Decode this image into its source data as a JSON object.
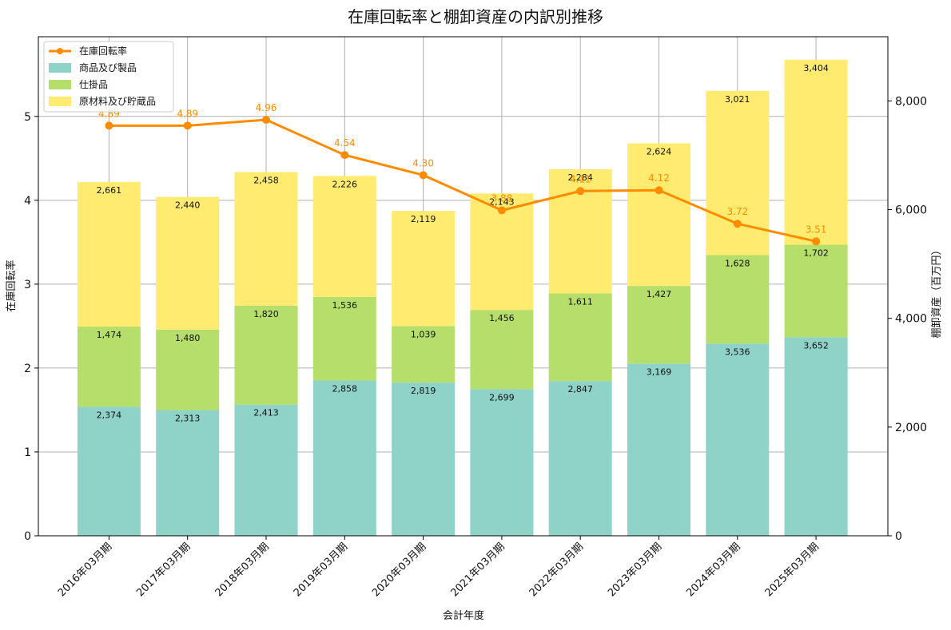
{
  "chart_data": {
    "type": "bar",
    "title": "在庫回転率と棚卸資産の内訳別推移",
    "xlabel": "会計年度",
    "ylabel_left": "在庫回転率",
    "ylabel_right": "棚卸資産（百万円）",
    "categories": [
      "2016年03月期",
      "2017年03月期",
      "2018年03月期",
      "2019年03月期",
      "2020年03月期",
      "2021年03月期",
      "2022年03月期",
      "2023年03月期",
      "2024年03月期",
      "2025年03月期"
    ],
    "stacked_bars": [
      {
        "name": "商品及び製品",
        "color": "#8fd3c8",
        "values": [
          2374,
          2313,
          2413,
          2858,
          2819,
          2699,
          2847,
          3169,
          3536,
          3652
        ],
        "labels": [
          "2,374",
          "2,313",
          "2,413",
          "2,858",
          "2,819",
          "2,699",
          "2,847",
          "3,169",
          "3,536",
          "3,652"
        ]
      },
      {
        "name": "仕掛品",
        "color": "#b5de6a",
        "values": [
          1474,
          1480,
          1820,
          1536,
          1039,
          1456,
          1611,
          1427,
          1628,
          1702
        ],
        "labels": [
          "1,474",
          "1,480",
          "1,820",
          "1,536",
          "1,039",
          "1,456",
          "1,611",
          "1,427",
          "1,628",
          "1,702"
        ]
      },
      {
        "name": "原材料及び貯蔵品",
        "color": "#ffeb70",
        "values": [
          2661,
          2440,
          2458,
          2226,
          2119,
          2143,
          2284,
          2624,
          3021,
          3404
        ],
        "labels": [
          "2,661",
          "2,440",
          "2,458",
          "2,226",
          "2,119",
          "2,143",
          "2,284",
          "2,624",
          "3,021",
          "3,404"
        ]
      }
    ],
    "line_series": {
      "name": "在庫回転率",
      "color": "#ff8c00",
      "values": [
        4.89,
        4.89,
        4.96,
        4.54,
        4.3,
        3.88,
        4.11,
        4.12,
        3.72,
        3.51
      ],
      "labels": [
        "4.89",
        "4.89",
        "4.96",
        "4.54",
        "4.30",
        "3.88",
        "4.11",
        "4.12",
        "3.72",
        "3.51"
      ]
    },
    "y_left": {
      "min": 0,
      "max": 5.95,
      "ticks": [
        0,
        1,
        2,
        3,
        4,
        5
      ],
      "tick_labels": [
        "0",
        "1",
        "2",
        "3",
        "4",
        "5"
      ]
    },
    "y_right": {
      "min": 0,
      "max": 9181,
      "ticks": [
        0,
        2000,
        4000,
        6000,
        8000
      ],
      "tick_labels": [
        "0",
        "2,000",
        "4,000",
        "6,000",
        "8,000"
      ]
    },
    "grid": true,
    "legend_position": "top-left"
  }
}
